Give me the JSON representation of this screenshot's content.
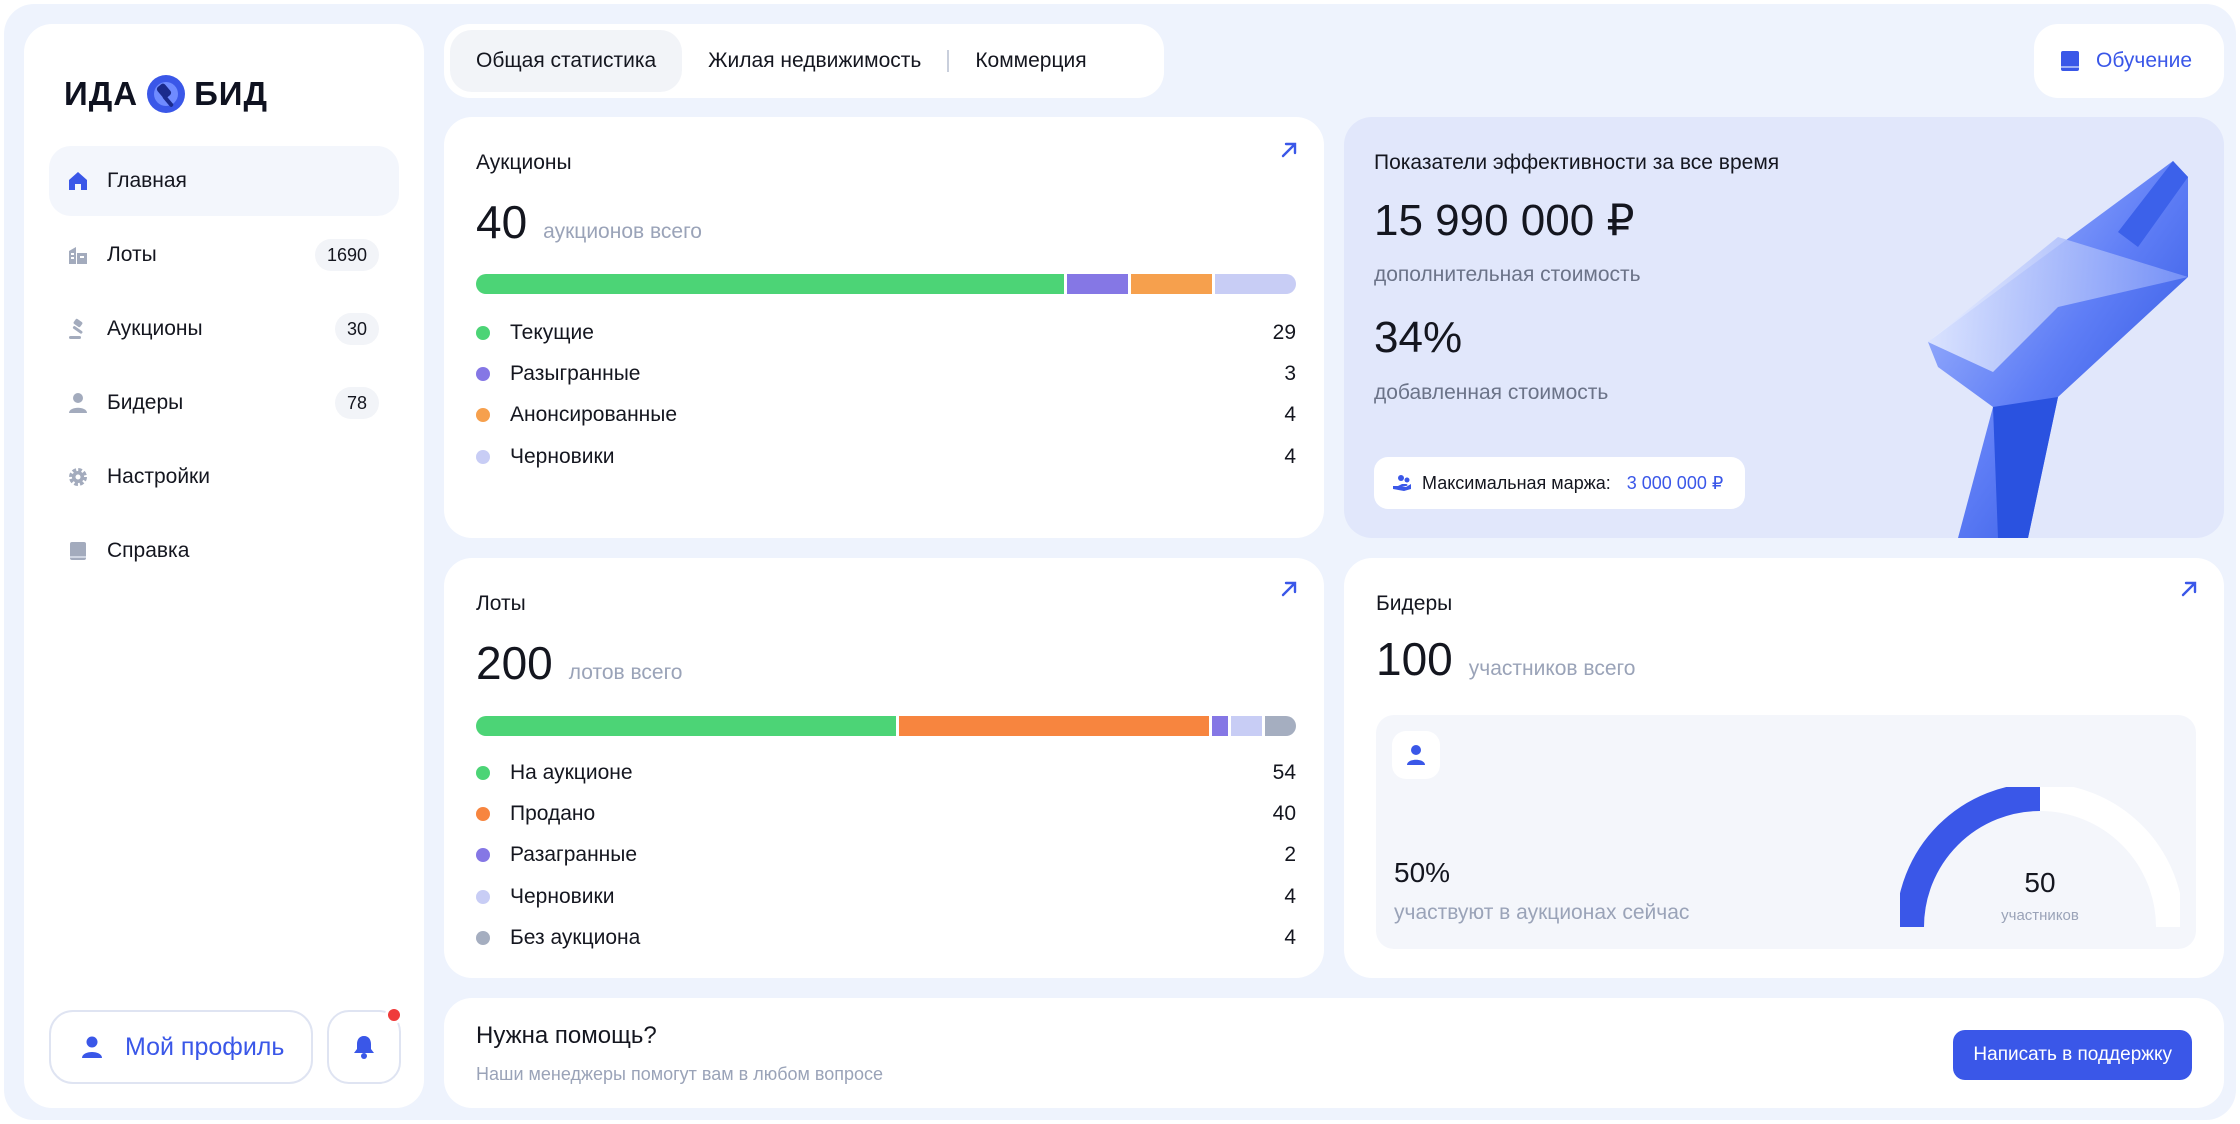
{
  "brand": {
    "left": "ИДА",
    "right": "БИД"
  },
  "sidebar": {
    "items": [
      {
        "label": "Главная",
        "badge": ""
      },
      {
        "label": "Лоты",
        "badge": "1690"
      },
      {
        "label": "Аукционы",
        "badge": "30"
      },
      {
        "label": "Бидеры",
        "badge": "78"
      },
      {
        "label": "Настройки",
        "badge": ""
      },
      {
        "label": "Справка",
        "badge": ""
      }
    ],
    "profile_label": "Мой профиль"
  },
  "tabs": [
    {
      "label": "Общая статистика"
    },
    {
      "label": "Жилая недвижимость"
    },
    {
      "label": "Коммерция"
    }
  ],
  "learn_label": "Обучение",
  "auctions": {
    "title": "Аукционы",
    "total": "40",
    "total_sub": "аукционов всего",
    "rows": [
      {
        "label": "Текущие",
        "value": "29",
        "color": "#4cd476"
      },
      {
        "label": "Разыгранные",
        "value": "3",
        "color": "#8577e5"
      },
      {
        "label": "Анонсированные",
        "value": "4",
        "color": "#f6a04d"
      },
      {
        "label": "Черновики",
        "value": "4",
        "color": "#c8cdf5"
      }
    ]
  },
  "efficiency": {
    "title": "Показатели эффективности за все время",
    "value1": "15 990 000 ₽",
    "sub1": "дополнительная стоимость",
    "value2": "34%",
    "sub2": "добавленная стоимость",
    "margin_label": "Максимальная маржа:",
    "margin_value": "3 000 000 ₽"
  },
  "lots": {
    "title": "Лоты",
    "total": "200",
    "total_sub": "лотов всего",
    "rows": [
      {
        "label": "На аукционе",
        "value": "54",
        "color": "#4cd476"
      },
      {
        "label": "Продано",
        "value": "40",
        "color": "#f7853f"
      },
      {
        "label": "Разагранные",
        "value": "2",
        "color": "#8577e5"
      },
      {
        "label": "Черновики",
        "value": "4",
        "color": "#c8cdf5"
      },
      {
        "label": "Без аукциона",
        "value": "4",
        "color": "#a5aec0"
      }
    ]
  },
  "bidders": {
    "title": "Бидеры",
    "total": "100",
    "total_sub": "участников всего",
    "percent": "50%",
    "percent_sub": "участвуют в аукционах сейчас",
    "gauge_value": "50",
    "gauge_sub": "участников",
    "gauge_fraction": 0.5
  },
  "help": {
    "title": "Нужна помощь?",
    "subtitle": "Наши менеджеры помогут вам в любом вопросе",
    "button": "Написать в поддержку"
  },
  "colors": {
    "accent": "#3a57e8",
    "notification": "#ef3b3b"
  }
}
